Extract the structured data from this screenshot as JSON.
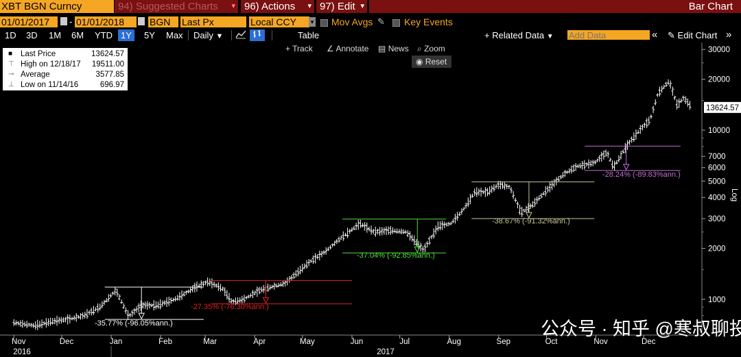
{
  "header": {
    "ticker": "XBT BGN Curncy",
    "suggested": "94) Suggested Charts",
    "actions": "96) Actions",
    "edit": "97) Edit",
    "dropdown": "▾",
    "bar_chart": "Bar Chart"
  },
  "controls": {
    "start_date": "01/01/2017",
    "end_date": "01/01/2018",
    "source": "BGN",
    "field": "Last Px",
    "currency": "Local CCY",
    "mov_avgs": "Mov Avgs",
    "key_events": "Key Events"
  },
  "periods": [
    "1D",
    "3D",
    "1M",
    "6M",
    "YTD",
    "1Y",
    "5Y",
    "Max"
  ],
  "selected_period": "1Y",
  "toolbar": {
    "frequency": "Daily",
    "table": "Table",
    "related_data": "+ Related Data",
    "add_data_placeholder": "Add Data",
    "edit_chart": "Edit Chart",
    "track": "Track",
    "annotate": "Annotate",
    "news": "News",
    "zoom": "Zoom",
    "reset": "Reset"
  },
  "legend": {
    "items": [
      {
        "label": "Last Price",
        "value": "13624.57"
      },
      {
        "label": "High on 12/18/17",
        "value": "19511.00"
      },
      {
        "label": "Average",
        "value": "3577.85"
      },
      {
        "label": "Low on 11/14/16",
        "value": "696.97"
      }
    ]
  },
  "colors": {
    "accent_orange": "#f5a623",
    "selected_blue": "#2b6ed6",
    "drawdown_white": "#ffffff",
    "drawdown_red": "#e02020",
    "drawdown_green": "#55e040",
    "drawdown_khaki": "#c8c89a",
    "drawdown_purple": "#c070d0"
  },
  "watermark": "公众号 ·  知乎 @寒叔聊投资",
  "chart_data": {
    "type": "line",
    "yscale": "log",
    "ylabel": "Log",
    "ylim": [
      620,
      33000
    ],
    "y_ticks": [
      1000,
      2000,
      3000,
      4000,
      5000,
      6000,
      7000,
      10000,
      20000,
      30000
    ],
    "last_price_label": "13624.57",
    "x_ticks": [
      "Nov",
      "Dec",
      "Jan",
      "Feb",
      "Mar",
      "Apr",
      "May",
      "Jun",
      "Jul",
      "Aug",
      "Sep",
      "Oct",
      "Nov",
      "Dec"
    ],
    "year_labels": [
      "2016",
      "2017"
    ],
    "series": [
      {
        "x": [
          "2016-11-01",
          "2016-11-14",
          "2016-11-25",
          "2016-12-05",
          "2016-12-15",
          "2016-12-25",
          "2017-01-04",
          "2017-01-12",
          "2017-01-20",
          "2017-01-30",
          "2017-02-10",
          "2017-02-23",
          "2017-03-03",
          "2017-03-12",
          "2017-03-18",
          "2017-03-25",
          "2017-04-05",
          "2017-04-20",
          "2017-05-05",
          "2017-05-15",
          "2017-05-25",
          "2017-06-06",
          "2017-06-15",
          "2017-06-25",
          "2017-07-05",
          "2017-07-16",
          "2017-07-25",
          "2017-08-02",
          "2017-08-10",
          "2017-08-17",
          "2017-08-25",
          "2017-09-01",
          "2017-09-08",
          "2017-09-15",
          "2017-09-22",
          "2017-10-01",
          "2017-10-12",
          "2017-10-20",
          "2017-10-31",
          "2017-11-08",
          "2017-11-12",
          "2017-11-20",
          "2017-11-28",
          "2017-12-05",
          "2017-12-10",
          "2017-12-17",
          "2017-12-22",
          "2017-12-26",
          "2017-12-31"
        ],
        "y": [
          727,
          697,
          740,
          760,
          800,
          900,
          1130,
          790,
          920,
          920,
          1000,
          1180,
          1270,
          1150,
          960,
          1000,
          1140,
          1240,
          1650,
          1900,
          2300,
          2800,
          2500,
          2550,
          2500,
          1950,
          2700,
          2800,
          3400,
          4300,
          4300,
          4750,
          4600,
          3250,
          3600,
          4400,
          5500,
          6100,
          6400,
          7400,
          6000,
          8000,
          9900,
          11500,
          16500,
          19511,
          14000,
          15500,
          13624.57
        ]
      }
    ],
    "annotations": [
      {
        "text": "-35.77% (-96.05%ann.)",
        "color": "#ffffff"
      },
      {
        "text": "-27.35% (-76.30%ann.)",
        "color": "#e02020"
      },
      {
        "text": "-37.04% (-92.85%ann.)",
        "color": "#55e040"
      },
      {
        "text": "-38.67% (-91.32%ann.)",
        "color": "#c8c89a"
      },
      {
        "text": "-28.24% (-89.83%ann.)",
        "color": "#c070d0"
      }
    ]
  }
}
